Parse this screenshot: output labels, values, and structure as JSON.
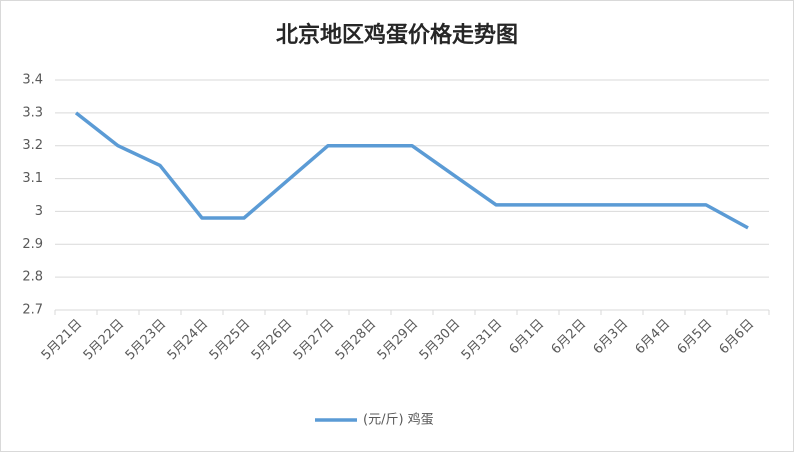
{
  "chart_data": {
    "type": "line",
    "title": "北京地区鸡蛋价格走势图",
    "categories": [
      "5月21日",
      "5月22日",
      "5月23日",
      "5月24日",
      "5月25日",
      "5月26日",
      "5月27日",
      "5月28日",
      "5月29日",
      "5月30日",
      "5月31日",
      "6月1日",
      "6月2日",
      "6月3日",
      "6月4日",
      "6月5日",
      "6月6日"
    ],
    "series": [
      {
        "name": "(元/斤) 鸡蛋",
        "color": "#5b9bd5",
        "values": [
          3.3,
          3.2,
          3.14,
          2.98,
          2.98,
          3.09,
          3.2,
          3.2,
          3.2,
          3.11,
          3.02,
          3.02,
          3.02,
          3.02,
          3.02,
          3.02,
          2.95
        ]
      }
    ],
    "ylim": [
      2.7,
      3.4
    ],
    "yticks": [
      2.7,
      2.8,
      2.9,
      3,
      3.1,
      3.2,
      3.3,
      3.4
    ],
    "grid": true,
    "legend": "bottom"
  }
}
